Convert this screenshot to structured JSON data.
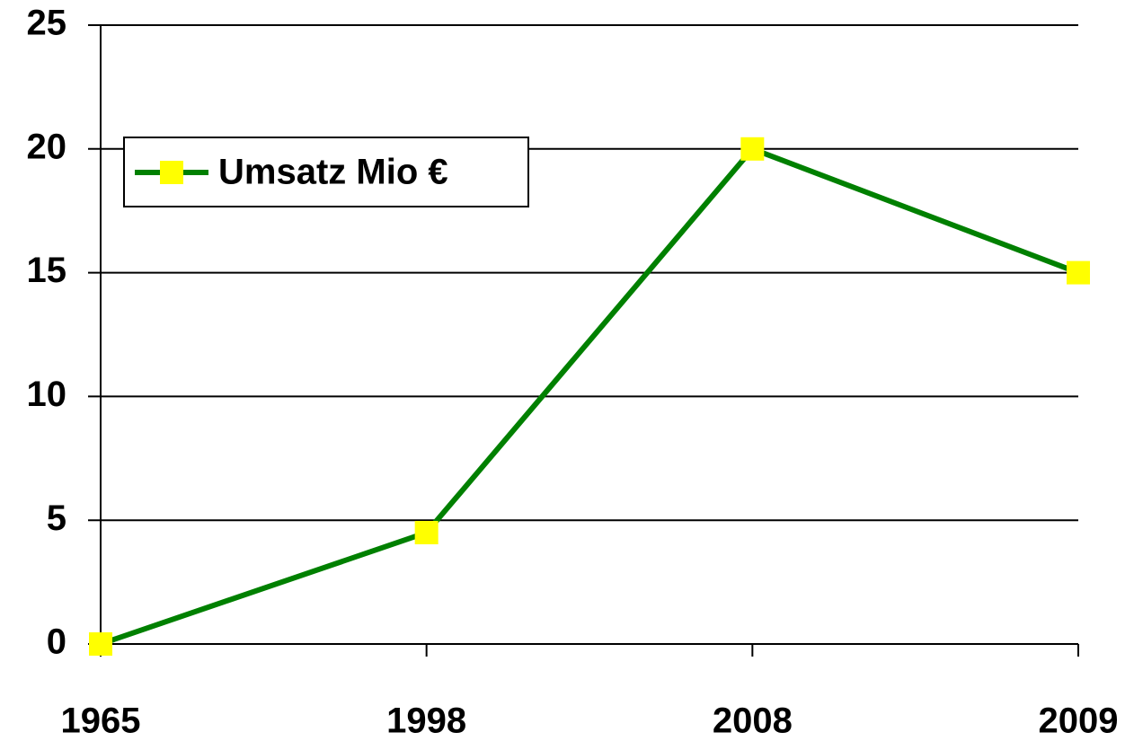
{
  "chart_data": {
    "type": "line",
    "categories": [
      "1965",
      "1998",
      "2008",
      "2009"
    ],
    "series": [
      {
        "name": "Umsatz Mio €",
        "color": "#008000",
        "marker_color": "#ffff00",
        "values": [
          0,
          4.5,
          20,
          15
        ]
      }
    ],
    "ylim": [
      0,
      25
    ],
    "yticks": [
      0,
      5,
      10,
      15,
      20,
      25
    ],
    "grid": true,
    "legend": "upper left"
  }
}
